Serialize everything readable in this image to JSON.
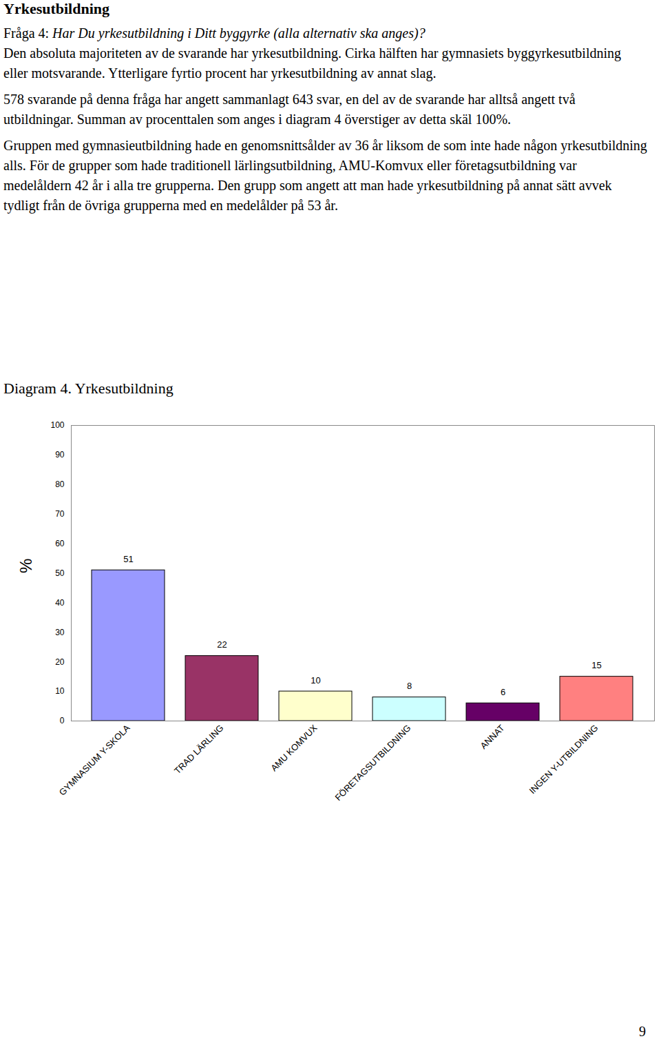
{
  "document": {
    "heading": "Yrkesutbildning",
    "question_label": "Fråga 4:",
    "question_text": "Har Du yrkesutbildning i Ditt byggyrke (alla alternativ ska anges)?",
    "paragraphs": [
      "Den absoluta majoriteten av de svarande har yrkesutbildning. Cirka hälften har gymnasiets byggyrkesutbildning eller motsvarande. Ytterligare fyrtio procent har yrkesutbildning av annat slag.",
      "578 svarande på denna fråga har angett sammanlagt 643 svar, en del av de svarande har alltså angett två utbildningar. Summan av procenttalen som anges i diagram 4 överstiger av detta skäl 100%.",
      "Gruppen med gymnasieutbildning hade en genomsnittsålder av 36 år liksom de som inte hade någon yrkesutbildning alls. För de grupper som hade traditionell lärlingsutbildning, AMU-Komvux eller företagsutbildning var medelåldern 42 år i alla tre grupperna. Den grupp som angett att man hade yrkesutbildning på annat sätt avvek tydligt från de övriga grupperna med en medelålder på 53 år."
    ],
    "diagram_title": "Diagram 4. Yrkesutbildning",
    "page_number": "9"
  },
  "chart_data": {
    "type": "bar",
    "y_label": "%",
    "categories": [
      "GYMNASIUM Y-SKOLA",
      "TRAD LÄRLING",
      "AMU KOMVUX",
      "FÖRETAGSUTBILDNING",
      "ANNAT",
      "INGEN Y-UTBILDNING"
    ],
    "values": [
      51,
      22,
      10,
      8,
      6,
      15
    ],
    "colors": [
      "#9999ff",
      "#993366",
      "#ffffcc",
      "#ccffff",
      "#660066",
      "#ff8080"
    ],
    "ylim": [
      0,
      100
    ],
    "yticks": [
      0,
      10,
      20,
      30,
      40,
      50,
      60,
      70,
      80,
      90,
      100
    ],
    "data_labels": true,
    "grid": false
  }
}
